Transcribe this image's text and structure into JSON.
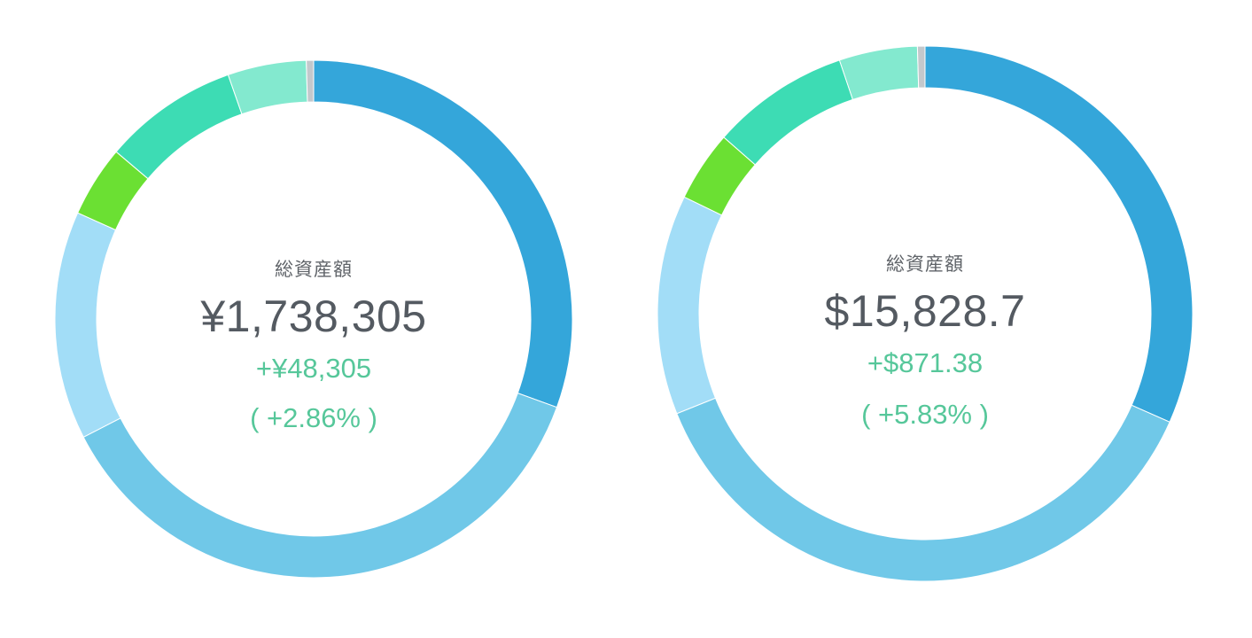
{
  "chart_data": [
    {
      "type": "donut",
      "title": "総資産額",
      "total": "¥1,738,305",
      "change": "+¥48,305",
      "change_pct": "( +2.86% )",
      "segments": [
        {
          "value": 33.6,
          "color": "#34a6da"
        },
        {
          "value": 40.6,
          "color": "#70c8e8"
        },
        {
          "value": 15.7,
          "color": "#a2ddf7"
        },
        {
          "value": 4.9,
          "color": "#6be033"
        },
        {
          "value": 9.3,
          "color": "#3ddcb4"
        },
        {
          "value": 5.4,
          "color": "#83e9cf"
        },
        {
          "value": 0.5,
          "color": "#c3c8cc"
        }
      ]
    },
    {
      "type": "donut",
      "title": "総資産額",
      "total": "$15,828.7",
      "change": "+$871.38",
      "change_pct": "( +5.83% )",
      "segments": [
        {
          "value": 34.8,
          "color": "#34a6da"
        },
        {
          "value": 41.0,
          "color": "#70c8e8"
        },
        {
          "value": 14.6,
          "color": "#a2ddf7"
        },
        {
          "value": 4.7,
          "color": "#6be033"
        },
        {
          "value": 9.2,
          "color": "#3ddcb4"
        },
        {
          "value": 5.2,
          "color": "#83e9cf"
        },
        {
          "value": 0.5,
          "color": "#c3c8cc"
        }
      ]
    }
  ]
}
